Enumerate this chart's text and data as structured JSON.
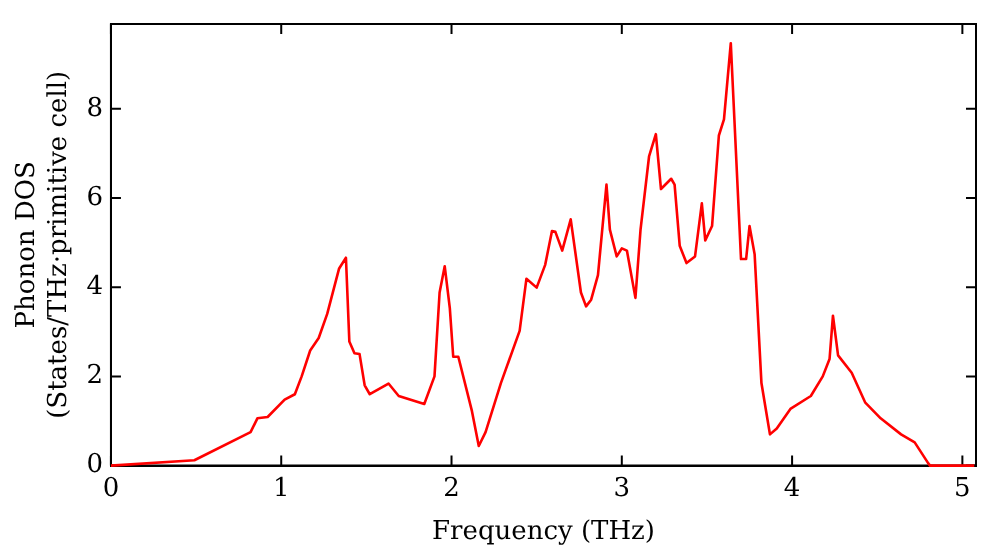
{
  "chart_data": {
    "type": "line",
    "xlabel": "Frequency (THz)",
    "ylabel": "Phonon DOS\n(States/THz·primitive cell)",
    "xlim": [
      0,
      5.08
    ],
    "ylim": [
      0,
      9.9
    ],
    "xticks": [
      0,
      1,
      2,
      3,
      4,
      5
    ],
    "yticks": [
      0,
      2,
      4,
      6,
      8
    ],
    "grid": false,
    "legend": false,
    "marker": "none",
    "line_style": "solid",
    "series": [
      {
        "color": "#ff0000",
        "x": [
          0,
          0.49,
          0.82,
          0.86,
          0.92,
          1.02,
          1.08,
          1.12,
          1.17,
          1.22,
          1.27,
          1.34,
          1.38,
          1.4,
          1.43,
          1.46,
          1.49,
          1.52,
          1.63,
          1.69,
          1.84,
          1.9,
          1.93,
          1.96,
          1.99,
          2.01,
          2.04,
          2.12,
          2.16,
          2.2,
          2.29,
          2.4,
          2.44,
          2.5,
          2.55,
          2.59,
          2.61,
          2.65,
          2.7,
          2.76,
          2.79,
          2.82,
          2.86,
          2.91,
          2.93,
          2.97,
          3.0,
          3.03,
          3.08,
          3.11,
          3.16,
          3.2,
          3.23,
          3.29,
          3.31,
          3.34,
          3.38,
          3.43,
          3.47,
          3.49,
          3.53,
          3.57,
          3.6,
          3.64,
          3.7,
          3.73,
          3.75,
          3.78,
          3.82,
          3.87,
          3.91,
          3.99,
          4.11,
          4.18,
          4.22,
          4.24,
          4.27,
          4.35,
          4.43,
          4.52,
          4.64,
          4.72,
          4.8,
          4.81,
          5.07
        ],
        "values": [
          0,
          0.12,
          0.75,
          1.06,
          1.09,
          1.48,
          1.6,
          2.0,
          2.58,
          2.86,
          3.4,
          4.42,
          4.66,
          2.78,
          2.52,
          2.5,
          1.8,
          1.6,
          1.84,
          1.56,
          1.38,
          2.0,
          3.88,
          4.47,
          3.53,
          2.44,
          2.44,
          1.22,
          0.44,
          0.75,
          1.85,
          3.02,
          4.19,
          3.99,
          4.5,
          5.26,
          5.24,
          4.82,
          5.52,
          3.88,
          3.57,
          3.72,
          4.27,
          6.3,
          5.29,
          4.69,
          4.87,
          4.82,
          3.76,
          5.29,
          6.93,
          7.43,
          6.2,
          6.43,
          6.3,
          4.93,
          4.54,
          4.69,
          5.88,
          5.05,
          5.37,
          7.4,
          7.76,
          9.47,
          4.63,
          4.63,
          5.37,
          4.74,
          1.85,
          0.7,
          0.83,
          1.27,
          1.56,
          2.0,
          2.39,
          3.36,
          2.47,
          2.08,
          1.41,
          1.06,
          0.7,
          0.52,
          0.05,
          0,
          0
        ]
      }
    ]
  }
}
